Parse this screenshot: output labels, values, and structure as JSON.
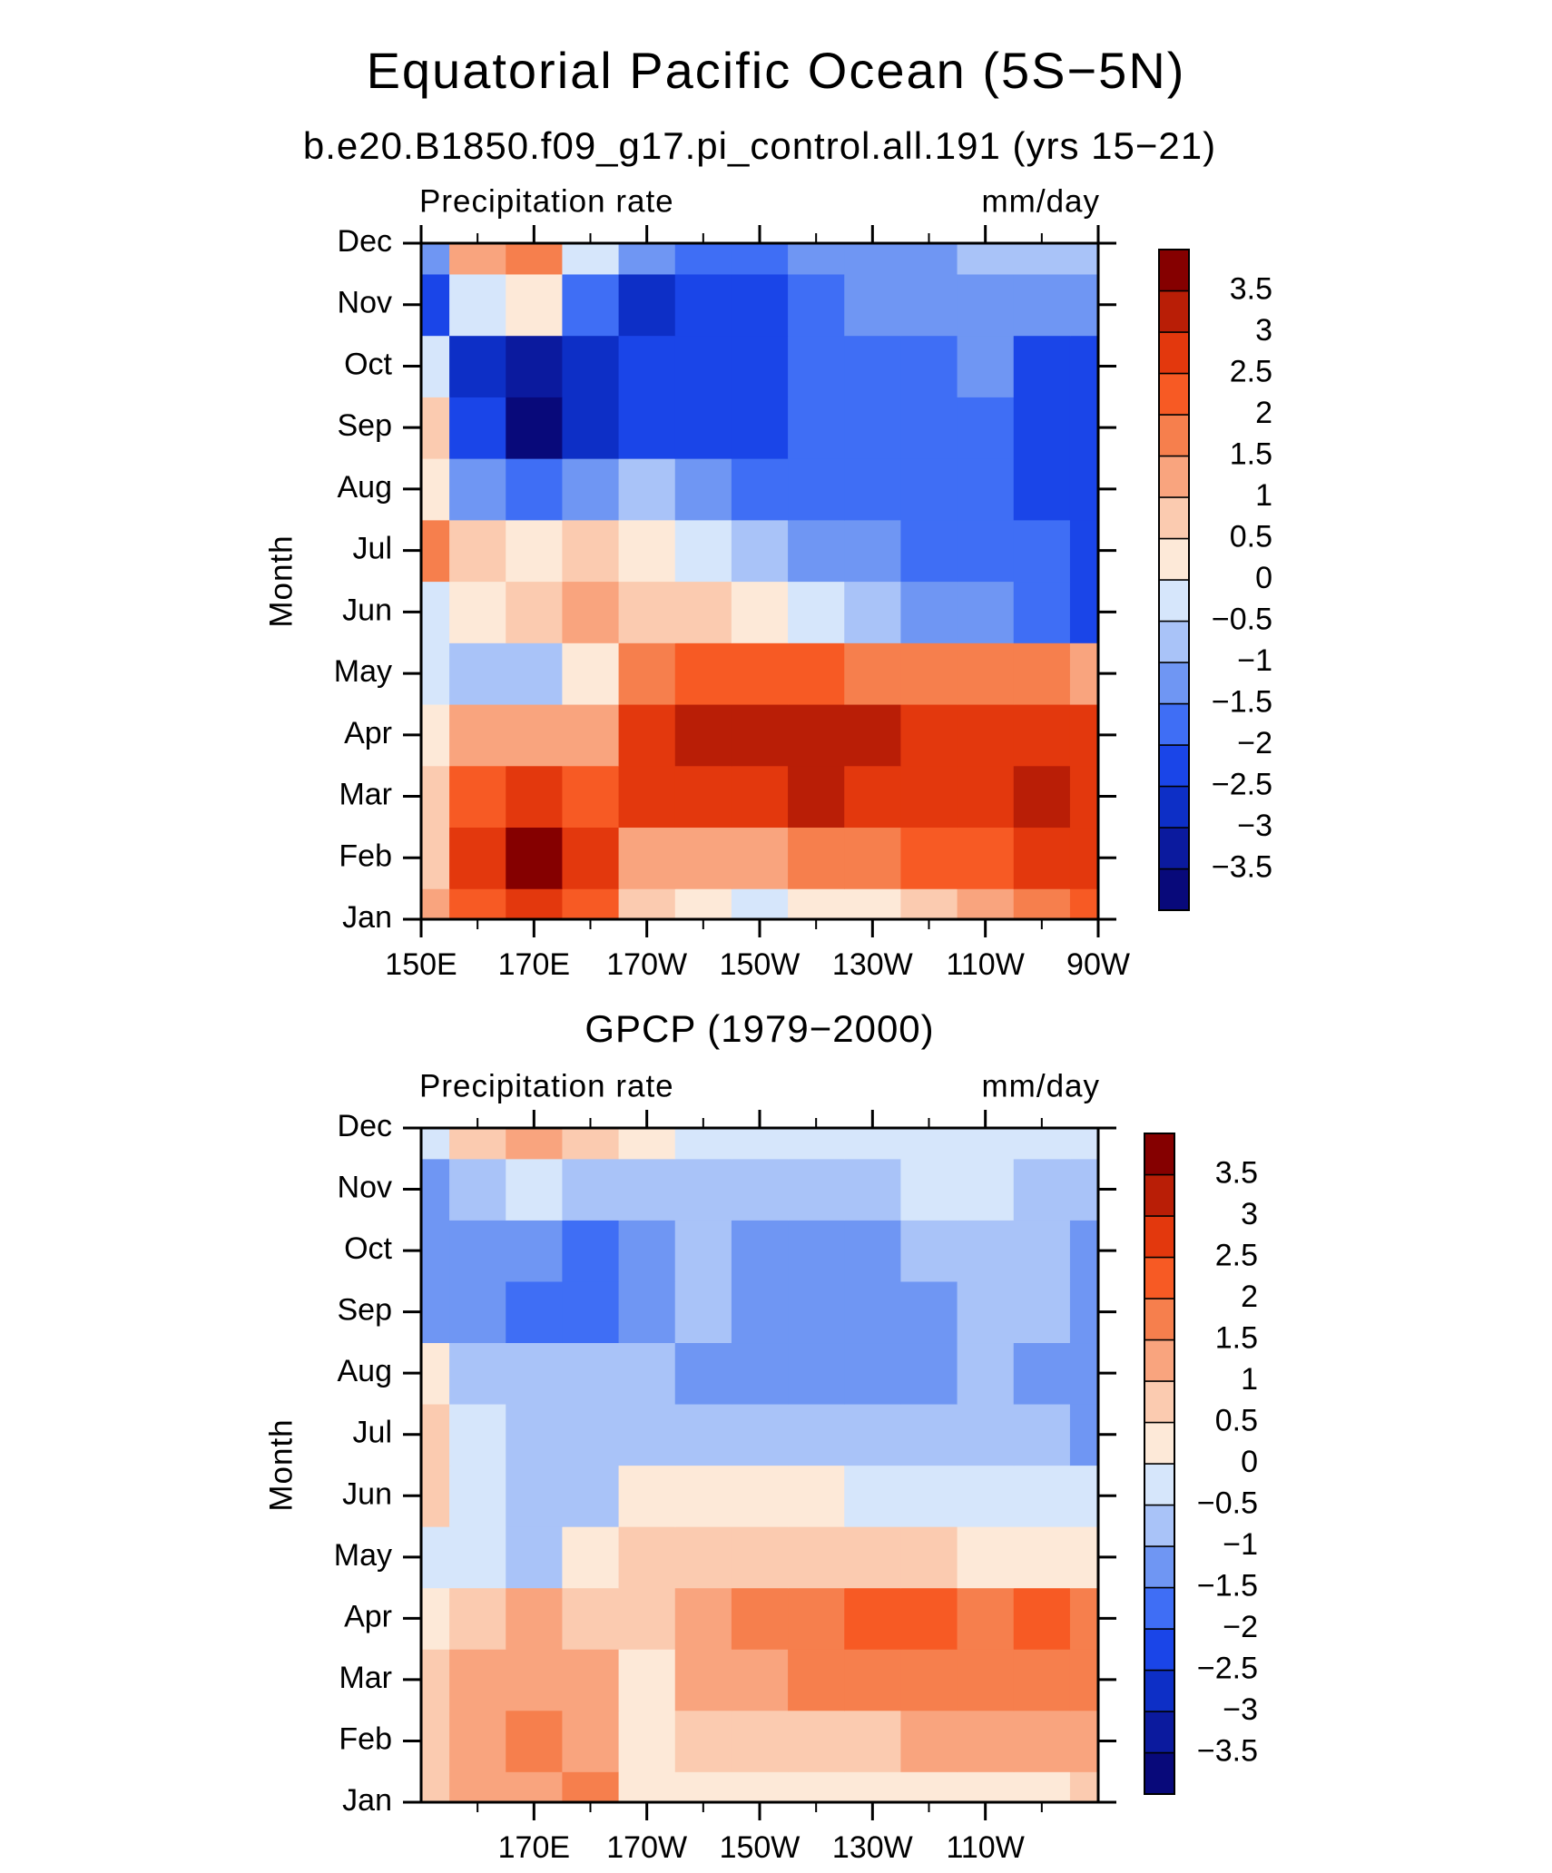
{
  "title": "Equatorial Pacific Ocean (5S−5N)",
  "chart_data": [
    {
      "type": "heatmap",
      "title": "b.e20.B1850.f09_g17.pi_control.all.191 (yrs 15−21)",
      "left_label": "Precipitation rate",
      "right_label": "mm/day",
      "ylabel": "Month",
      "y": [
        "Jan",
        "Feb",
        "Mar",
        "Apr",
        "May",
        "Jun",
        "Jul",
        "Aug",
        "Sep",
        "Oct",
        "Nov",
        "Dec"
      ],
      "x": [
        150,
        160,
        170,
        180,
        190,
        200,
        210,
        220,
        230,
        240,
        250,
        260,
        270
      ],
      "xlim": [
        150,
        270
      ],
      "xticks": [
        {
          "value": 150,
          "label": "150E"
        },
        {
          "value": 170,
          "label": "170E"
        },
        {
          "value": 190,
          "label": "170W"
        },
        {
          "value": 210,
          "label": "150W"
        },
        {
          "value": 230,
          "label": "130W"
        },
        {
          "value": 250,
          "label": "110W"
        },
        {
          "value": 270,
          "label": "90W"
        }
      ],
      "xminor": [
        160,
        180,
        200,
        220,
        240,
        260
      ],
      "z": [
        [
          1,
          2,
          2.5,
          2,
          0.5,
          0,
          -0.3,
          0,
          0.3,
          0.8,
          1.2,
          1.8,
          2.2
        ],
        [
          0.8,
          2.5,
          3.8,
          2.5,
          1.2,
          1,
          1.2,
          1.5,
          1.8,
          2,
          2.3,
          2.6,
          2.8
        ],
        [
          0.7,
          2.2,
          2.5,
          2.3,
          2.7,
          2.8,
          2.9,
          3,
          2.8,
          2.8,
          2.9,
          3.1,
          2.8
        ],
        [
          0.3,
          1,
          1.2,
          1,
          2.6,
          3.1,
          3.1,
          3.1,
          3,
          2.8,
          2.7,
          2.7,
          2.5
        ],
        [
          -0.3,
          -0.6,
          -0.7,
          0.3,
          1.8,
          2.1,
          2.1,
          2,
          1.9,
          1.8,
          1.7,
          1.5,
          1.2
        ],
        [
          -0.4,
          0.3,
          0.8,
          1.2,
          0.8,
          0.5,
          0.2,
          -0.2,
          -0.7,
          -1.2,
          -1.5,
          -1.7,
          -2.3
        ],
        [
          1.5,
          0.5,
          0.3,
          0.8,
          0.3,
          -0.3,
          -0.7,
          -1.2,
          -1.5,
          -1.8,
          -1.8,
          -1.9,
          -2.1
        ],
        [
          0.4,
          -1.3,
          -2,
          -1.5,
          -1,
          -1.2,
          -1.6,
          -1.8,
          -1.8,
          -1.8,
          -1.8,
          -2.2,
          -2.4
        ],
        [
          0.7,
          -2.3,
          -3.8,
          -3,
          -2.3,
          -2.2,
          -2.1,
          -2,
          -1.8,
          -1.7,
          -1.8,
          -2.2,
          -2.4
        ],
        [
          -0.5,
          -2.8,
          -3.4,
          -3,
          -2.5,
          -2.3,
          -2.1,
          -2,
          -1.8,
          -1.6,
          -1.5,
          -2.1,
          -2.2
        ],
        [
          -2.2,
          -0.5,
          0.2,
          -1.8,
          -2.6,
          -2.5,
          -2.1,
          -1.7,
          -1.5,
          -1.4,
          -1.4,
          -1.3,
          -1.2
        ],
        [
          -1.5,
          1,
          1.5,
          -0.2,
          -1.4,
          -1.7,
          -1.6,
          -1.4,
          -1.2,
          -1.1,
          -1,
          -0.9,
          -0.8
        ]
      ],
      "levels": [
        {
          "value": -3.5,
          "label": "−3.5"
        },
        {
          "value": -3,
          "label": "−3"
        },
        {
          "value": -2.5,
          "label": "−2.5"
        },
        {
          "value": -2,
          "label": "−2"
        },
        {
          "value": -1.5,
          "label": "−1.5"
        },
        {
          "value": -1,
          "label": "−1"
        },
        {
          "value": -0.5,
          "label": "−0.5"
        },
        0,
        0.5,
        1,
        1.5,
        2,
        2.5,
        3,
        3.5
      ],
      "colors": [
        "#08097a",
        "#0b1a9e",
        "#0d2fc6",
        "#1a45e8",
        "#3f6ef5",
        "#6f96f3",
        "#a9c3f8",
        "#d6e6fb",
        "#fde9d8",
        "#fbcbb0",
        "#f9a47e",
        "#f67f4d",
        "#f75a24",
        "#e3380d",
        "#b91e06",
        "#850000"
      ]
    },
    {
      "type": "heatmap",
      "title": "GPCP (1979−2000)",
      "left_label": "Precipitation rate",
      "right_label": "mm/day",
      "ylabel": "Month",
      "y": [
        "Jan",
        "Feb",
        "Mar",
        "Apr",
        "May",
        "Jun",
        "Jul",
        "Aug",
        "Sep",
        "Oct",
        "Nov",
        "Dec"
      ],
      "x": [
        150,
        160,
        170,
        180,
        190,
        200,
        210,
        220,
        230,
        240,
        250,
        260,
        270
      ],
      "xlim": [
        150,
        270
      ],
      "xticks": [
        {
          "value": 170,
          "label": "170E"
        },
        {
          "value": 190,
          "label": "170W"
        },
        {
          "value": 210,
          "label": "150W"
        },
        {
          "value": 230,
          "label": "130W"
        },
        {
          "value": 250,
          "label": "110W"
        }
      ],
      "xminor": [
        160,
        180,
        200,
        220,
        240,
        260
      ],
      "z": [
        [
          0.6,
          1.2,
          1.3,
          1.8,
          0.2,
          0.1,
          0.1,
          0,
          0.1,
          0.2,
          0.3,
          0.4,
          0.5
        ],
        [
          0.7,
          1.2,
          1.6,
          1.4,
          0.3,
          0.6,
          0.8,
          0.9,
          0.9,
          1,
          1.1,
          1.2,
          1.4
        ],
        [
          0.7,
          1.1,
          1.2,
          1.3,
          0.3,
          1,
          1.4,
          1.6,
          1.7,
          1.8,
          1.7,
          1.8,
          1.6
        ],
        [
          0.4,
          0.9,
          1,
          0.8,
          0.8,
          1.1,
          1.6,
          1.8,
          2.1,
          2.1,
          1.7,
          2.1,
          1.8
        ],
        [
          -0.3,
          -0.2,
          -0.7,
          0.2,
          0.7,
          0.9,
          0.9,
          0.8,
          0.7,
          0.6,
          0.4,
          0.2,
          0.1
        ],
        [
          0.6,
          -0.4,
          -0.8,
          -0.6,
          0.3,
          0.3,
          0.2,
          0,
          -0.2,
          -0.3,
          -0.4,
          -0.4,
          -0.3
        ],
        [
          0.6,
          -0.5,
          -0.8,
          -0.7,
          -0.6,
          -0.7,
          -0.7,
          -0.7,
          -0.6,
          -0.6,
          -0.6,
          -0.7,
          -1.2
        ],
        [
          0.3,
          -0.7,
          -0.8,
          -0.8,
          -0.7,
          -1.1,
          -1.2,
          -1.2,
          -1.2,
          -1.1,
          -0.8,
          -1.2,
          -1.1
        ],
        [
          -1.3,
          -1.1,
          -1.7,
          -1.6,
          -1.1,
          -0.9,
          -1.2,
          -1.3,
          -1.3,
          -1.2,
          -0.8,
          -0.9,
          -1.2
        ],
        [
          -1.2,
          -1.3,
          -1.4,
          -1.7,
          -1.2,
          -0.9,
          -1.2,
          -1.2,
          -1.3,
          -1,
          -0.8,
          -0.8,
          -1.2
        ],
        [
          -1.3,
          -0.6,
          -0.4,
          -0.6,
          -0.7,
          -0.8,
          -0.7,
          -0.6,
          -0.6,
          -0.5,
          -0.5,
          -0.6,
          -0.6
        ],
        [
          -0.5,
          0.6,
          1.1,
          0.6,
          0.2,
          -0.3,
          -0.4,
          -0.3,
          -0.2,
          -0.3,
          -0.3,
          -0.4,
          -0.4
        ]
      ],
      "levels": [
        {
          "value": -3.5,
          "label": "−3.5"
        },
        {
          "value": -3,
          "label": "−3"
        },
        {
          "value": -2.5,
          "label": "−2.5"
        },
        {
          "value": -2,
          "label": "−2"
        },
        {
          "value": -1.5,
          "label": "−1.5"
        },
        {
          "value": -1,
          "label": "−1"
        },
        {
          "value": -0.5,
          "label": "−0.5"
        },
        0,
        0.5,
        1,
        1.5,
        2,
        2.5,
        3,
        3.5
      ],
      "colors": [
        "#08097a",
        "#0b1a9e",
        "#0d2fc6",
        "#1a45e8",
        "#3f6ef5",
        "#6f96f3",
        "#a9c3f8",
        "#d6e6fb",
        "#fde9d8",
        "#fbcbb0",
        "#f9a47e",
        "#f67f4d",
        "#f75a24",
        "#e3380d",
        "#b91e06",
        "#850000"
      ]
    }
  ]
}
